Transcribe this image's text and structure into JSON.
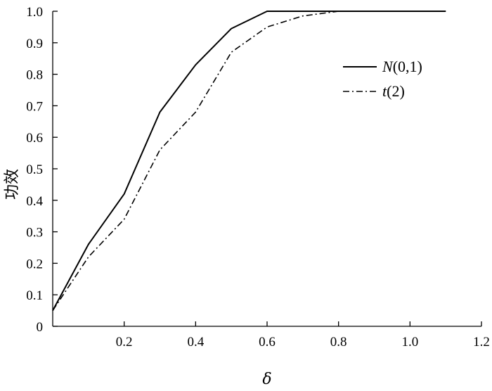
{
  "chart_data": {
    "type": "line",
    "title": "",
    "xlabel": "δ",
    "ylabel": "功效",
    "xlim": [
      0,
      1.2
    ],
    "ylim": [
      0,
      1.0
    ],
    "xticks": [
      "0.2",
      "0.4",
      "0.6",
      "0.8",
      "1.0",
      "1.2"
    ],
    "yticks": [
      "0",
      "0.1",
      "0.2",
      "0.3",
      "0.4",
      "0.5",
      "0.6",
      "0.7",
      "0.8",
      "0.9",
      "1.0"
    ],
    "grid": false,
    "legend_position": "top-right",
    "series": [
      {
        "name": "N(0,1)",
        "name_main": "N",
        "name_rest": "(0,1)",
        "style": "solid",
        "color": "#000000",
        "x": [
          0,
          0.1,
          0.2,
          0.3,
          0.4,
          0.5,
          0.6,
          0.7,
          0.8,
          0.9,
          1.0,
          1.1
        ],
        "y": [
          0.05,
          0.26,
          0.42,
          0.68,
          0.83,
          0.945,
          1.0,
          1.0,
          1.0,
          1.0,
          1.0,
          1.0
        ]
      },
      {
        "name": "t(2)",
        "name_main": "t",
        "name_rest": "(2)",
        "style": "dashdot",
        "color": "#000000",
        "x": [
          0,
          0.1,
          0.2,
          0.3,
          0.4,
          0.5,
          0.6,
          0.7,
          0.8,
          0.9,
          1.0,
          1.1
        ],
        "y": [
          0.05,
          0.22,
          0.34,
          0.56,
          0.68,
          0.87,
          0.95,
          0.985,
          1.0,
          1.0,
          1.0,
          1.0
        ]
      }
    ]
  }
}
